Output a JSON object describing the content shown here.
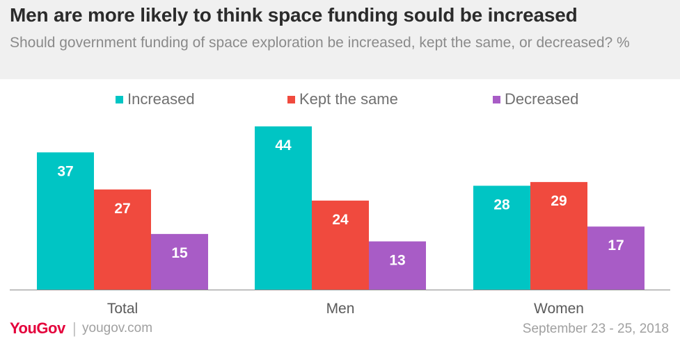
{
  "header": {
    "title": "Men are more likely to think space funding sould be increased",
    "subtitle": "Should government funding of space exploration be increased, kept the same, or decreased? %"
  },
  "footer": {
    "brand": "YouGov",
    "url": "yougov.com",
    "date": "September 23 - 25, 2018"
  },
  "chart_data": {
    "type": "bar",
    "title": "Men are more likely to think space funding sould be increased",
    "subtitle": "Should government funding of space exploration be increased, kept the same, or decreased? %",
    "categories": [
      "Total",
      "Men",
      "Women"
    ],
    "series": [
      {
        "name": "Increased",
        "color": "#00c5c4",
        "values": [
          37,
          44,
          28
        ]
      },
      {
        "name": "Kept the same",
        "color": "#f04a3e",
        "values": [
          27,
          24,
          29
        ]
      },
      {
        "name": "Decreased",
        "color": "#a85cc6",
        "values": [
          15,
          13,
          17
        ]
      }
    ],
    "ylim": [
      0,
      44
    ],
    "grid": false,
    "legend_placement": "top"
  }
}
